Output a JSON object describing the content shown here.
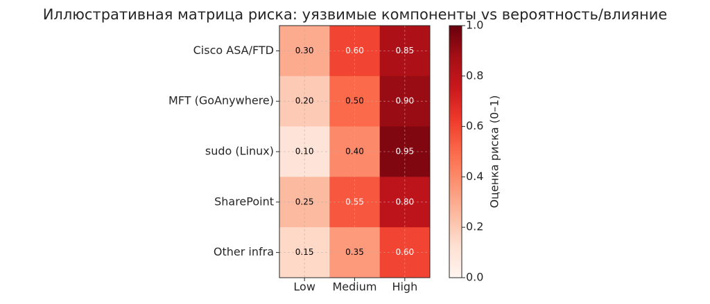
{
  "chart_data": {
    "type": "heatmap",
    "title": "Иллюстративная матрица риска: уязвимые компоненты vs вероятность/влияние",
    "x_categories": [
      "Low",
      "Medium",
      "High"
    ],
    "y_categories": [
      "Cisco ASA/FTD",
      "MFT (GoAnywhere)",
      "sudo (Linux)",
      "SharePoint",
      "Other infra"
    ],
    "values": [
      [
        0.3,
        0.6,
        0.85
      ],
      [
        0.2,
        0.5,
        0.9
      ],
      [
        0.1,
        0.4,
        0.95
      ],
      [
        0.25,
        0.55,
        0.8
      ],
      [
        0.15,
        0.35,
        0.6
      ]
    ],
    "value_labels": [
      [
        "0.30",
        "0.60",
        "0.85"
      ],
      [
        "0.20",
        "0.50",
        "0.90"
      ],
      [
        "0.10",
        "0.40",
        "0.95"
      ],
      [
        "0.25",
        "0.55",
        "0.80"
      ],
      [
        "0.15",
        "0.35",
        "0.60"
      ]
    ],
    "colormap": "Reds",
    "clim": [
      0,
      1
    ],
    "colorbar_label": "Оценка риска (0–1)",
    "colorbar_ticks": [
      {
        "value": 0,
        "label": "0.0"
      },
      0.2,
      0.4,
      0.6,
      0.8,
      {
        "value": 1,
        "label": "1.0"
      }
    ],
    "grid": true
  }
}
